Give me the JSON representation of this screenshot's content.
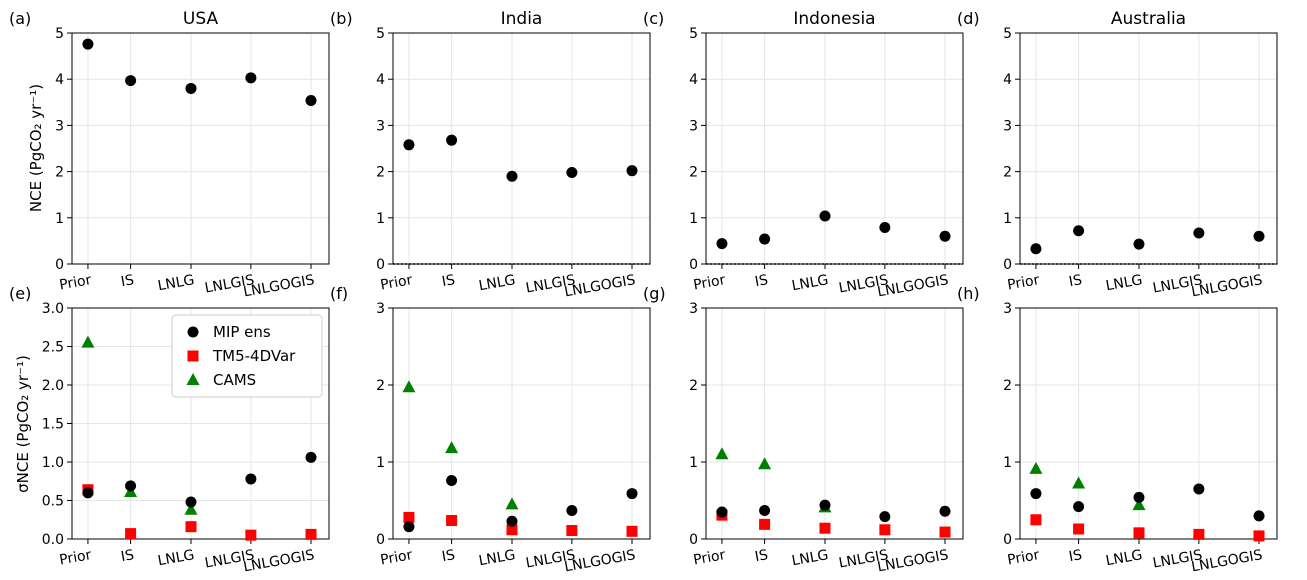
{
  "figure": {
    "ylabel_top": "NCE (PgCO₂ yr⁻¹)",
    "ylabel_bottom": "σNCE (PgCO₂ yr⁻¹)",
    "legend": [
      "MIP ens",
      "TM5-4DVar",
      "CAMS"
    ],
    "colors": {
      "MIP ens": "#000000",
      "TM5-4DVar": "#ff0000",
      "CAMS": "#008000"
    }
  },
  "chart_data": [
    {
      "panel": "(a)",
      "title": "USA",
      "type": "scatter",
      "categories": [
        "Prior",
        "IS",
        "LNLG",
        "LNLGIS",
        "LNLGOGIS"
      ],
      "ylim": [
        0,
        5
      ],
      "yticks": [
        "0",
        "1",
        "2",
        "3",
        "4",
        "5"
      ],
      "zero_line": false,
      "series": [
        {
          "name": "MIP ens",
          "marker": "circle",
          "values": [
            4.76,
            3.97,
            3.8,
            4.03,
            3.54
          ]
        }
      ]
    },
    {
      "panel": "(b)",
      "title": "India",
      "type": "scatter",
      "categories": [
        "Prior",
        "IS",
        "LNLG",
        "LNLGIS",
        "LNLGOGIS"
      ],
      "ylim": [
        0,
        5
      ],
      "yticks": [
        "0",
        "1",
        "2",
        "3",
        "4",
        "5"
      ],
      "zero_line": true,
      "series": [
        {
          "name": "MIP ens",
          "marker": "circle",
          "values": [
            2.58,
            2.68,
            1.9,
            1.98,
            2.02
          ]
        }
      ]
    },
    {
      "panel": "(c)",
      "title": "Indonesia",
      "type": "scatter",
      "categories": [
        "Prior",
        "IS",
        "LNLG",
        "LNLGIS",
        "LNLGOGIS"
      ],
      "ylim": [
        0,
        5
      ],
      "yticks": [
        "0",
        "1",
        "2",
        "3",
        "4",
        "5"
      ],
      "zero_line": true,
      "series": [
        {
          "name": "MIP ens",
          "marker": "circle",
          "values": [
            0.44,
            0.54,
            1.04,
            0.79,
            0.6
          ]
        }
      ]
    },
    {
      "panel": "(d)",
      "title": "Australia",
      "type": "scatter",
      "categories": [
        "Prior",
        "IS",
        "LNLG",
        "LNLGIS",
        "LNLGOGIS"
      ],
      "ylim": [
        0,
        5
      ],
      "yticks": [
        "0",
        "1",
        "2",
        "3",
        "4",
        "5"
      ],
      "zero_line": true,
      "series": [
        {
          "name": "MIP ens",
          "marker": "circle",
          "values": [
            0.33,
            0.72,
            0.43,
            0.67,
            0.6
          ]
        }
      ]
    },
    {
      "panel": "(e)",
      "title": "",
      "type": "scatter",
      "categories": [
        "Prior",
        "IS",
        "LNLG",
        "LNLGIS",
        "LNLGOGIS"
      ],
      "ylim": [
        0,
        3
      ],
      "yticks": [
        "0.0",
        "0.5",
        "1.0",
        "1.5",
        "2.0",
        "2.5",
        "3.0"
      ],
      "zero_line": false,
      "legend_location": "upper-center",
      "series": [
        {
          "name": "CAMS",
          "marker": "triangle",
          "values": [
            2.55,
            0.61,
            0.38,
            null,
            null
          ]
        },
        {
          "name": "TM5-4DVar",
          "marker": "square",
          "values": [
            0.64,
            0.07,
            0.16,
            0.05,
            0.06
          ]
        },
        {
          "name": "MIP ens",
          "marker": "circle",
          "values": [
            0.6,
            0.69,
            0.48,
            0.78,
            1.06
          ]
        }
      ]
    },
    {
      "panel": "(f)",
      "title": "",
      "type": "scatter",
      "categories": [
        "Prior",
        "IS",
        "LNLG",
        "LNLGIS",
        "LNLGOGIS"
      ],
      "ylim": [
        0,
        3
      ],
      "yticks": [
        "0",
        "1",
        "2",
        "3"
      ],
      "zero_line": false,
      "series": [
        {
          "name": "CAMS",
          "marker": "triangle",
          "values": [
            1.97,
            1.18,
            0.45,
            null,
            null
          ]
        },
        {
          "name": "TM5-4DVar",
          "marker": "square",
          "values": [
            0.28,
            0.24,
            0.12,
            0.11,
            0.1
          ]
        },
        {
          "name": "MIP ens",
          "marker": "circle",
          "values": [
            0.16,
            0.76,
            0.23,
            0.37,
            0.59
          ]
        }
      ]
    },
    {
      "panel": "(g)",
      "title": "",
      "type": "scatter",
      "categories": [
        "Prior",
        "IS",
        "LNLG",
        "LNLGIS",
        "LNLGOGIS"
      ],
      "ylim": [
        0,
        3
      ],
      "yticks": [
        "0",
        "1",
        "2",
        "3"
      ],
      "zero_line": false,
      "series": [
        {
          "name": "CAMS",
          "marker": "triangle",
          "values": [
            1.1,
            0.97,
            0.41,
            null,
            null
          ]
        },
        {
          "name": "TM5-4DVar",
          "marker": "square",
          "values": [
            0.31,
            0.19,
            0.14,
            0.12,
            0.09
          ]
        },
        {
          "name": "MIP ens",
          "marker": "circle",
          "values": [
            0.35,
            0.37,
            0.44,
            0.29,
            0.36
          ]
        }
      ]
    },
    {
      "panel": "(h)",
      "title": "",
      "type": "scatter",
      "categories": [
        "Prior",
        "IS",
        "LNLG",
        "LNLGIS",
        "LNLGOGIS"
      ],
      "ylim": [
        0,
        3
      ],
      "yticks": [
        "0",
        "1",
        "2",
        "3"
      ],
      "zero_line": false,
      "series": [
        {
          "name": "CAMS",
          "marker": "triangle",
          "values": [
            0.91,
            0.72,
            0.44,
            null,
            null
          ]
        },
        {
          "name": "TM5-4DVar",
          "marker": "square",
          "values": [
            0.25,
            0.13,
            0.08,
            0.06,
            0.04
          ]
        },
        {
          "name": "MIP ens",
          "marker": "circle",
          "values": [
            0.59,
            0.42,
            0.54,
            0.65,
            0.3
          ]
        }
      ]
    }
  ]
}
